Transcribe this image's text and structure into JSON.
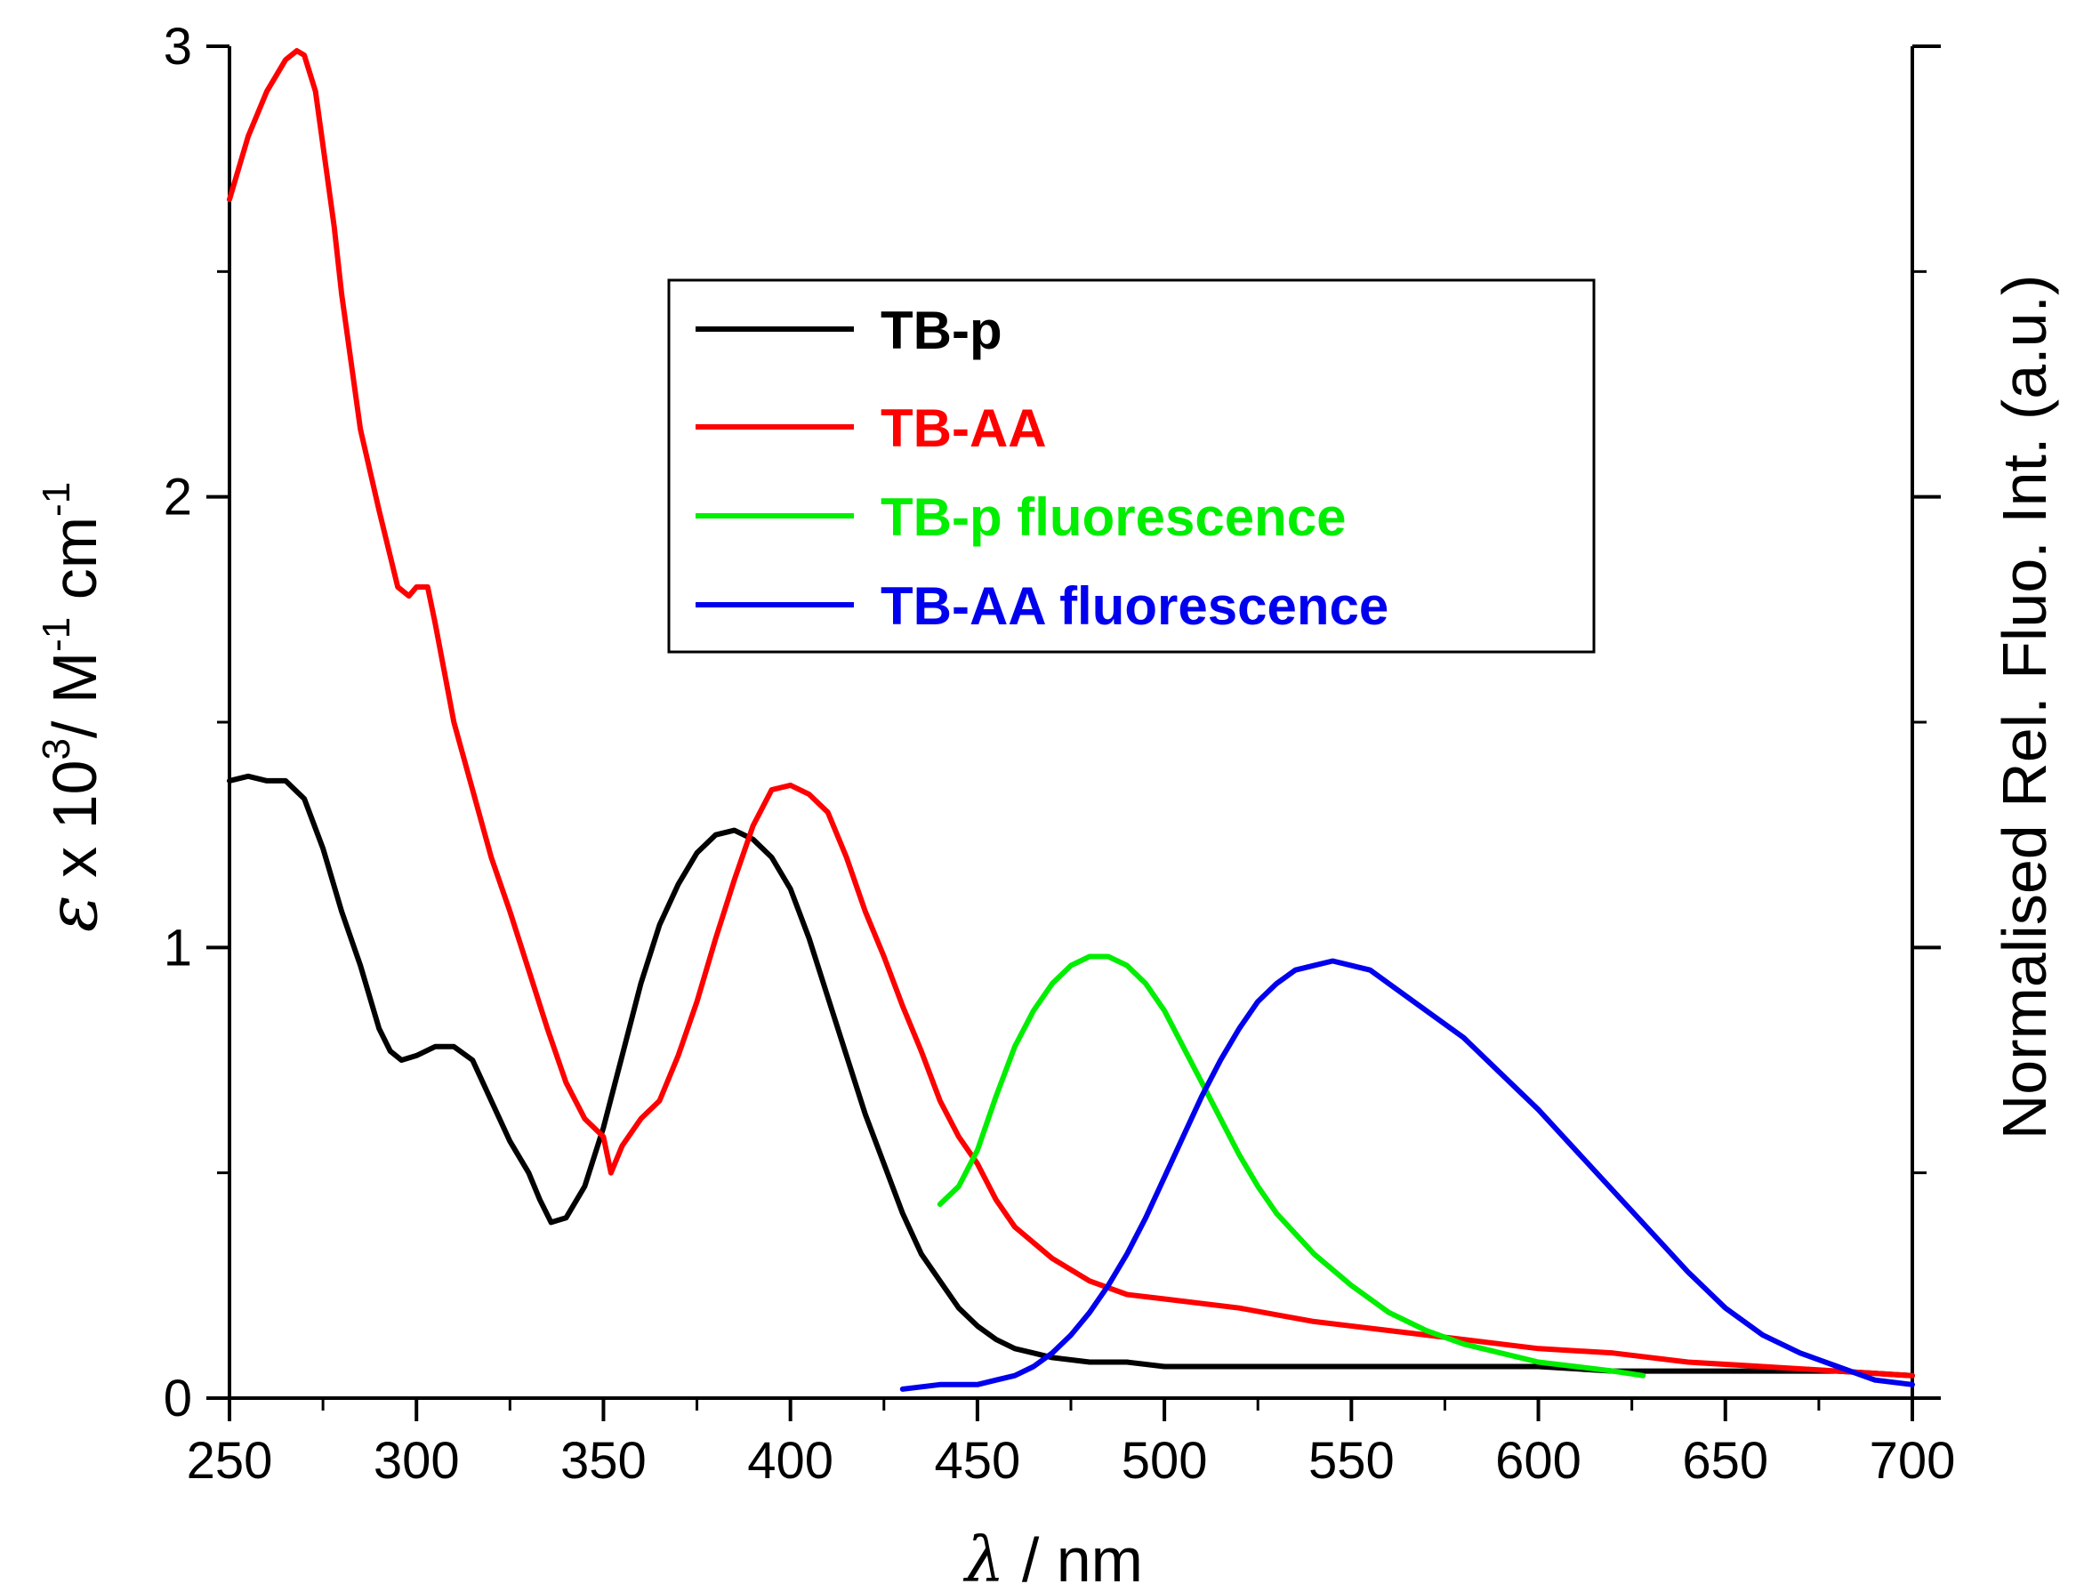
{
  "chart_data": {
    "type": "line",
    "xlabel": {
      "symbol": "λ",
      "unit": " / nm"
    },
    "ylabel_left": {
      "symbol": "ε",
      "part1": " x 10",
      "sup1": "3",
      "part2": "/ M",
      "sup2": "-1",
      "part3": " cm",
      "sup3": "-1"
    },
    "ylabel_right": "Normalised Rel. Fluo. Int. (a.u.)",
    "xlim": [
      250,
      700
    ],
    "ylim_left": [
      0,
      3
    ],
    "ylim_right": [
      0,
      3
    ],
    "x_ticks": [
      250,
      300,
      350,
      400,
      450,
      500,
      550,
      600,
      650,
      700
    ],
    "y_ticks_left": [
      0,
      1,
      2,
      3
    ],
    "legend_position": "top-center",
    "series": [
      {
        "name": "TB-p",
        "color": "#000000",
        "axis": "left",
        "x": [
          250,
          255,
          260,
          265,
          270,
          275,
          280,
          285,
          290,
          293,
          296,
          300,
          305,
          310,
          315,
          320,
          325,
          330,
          333,
          336,
          340,
          345,
          350,
          355,
          360,
          365,
          370,
          375,
          380,
          385,
          390,
          395,
          400,
          405,
          410,
          415,
          420,
          425,
          430,
          435,
          440,
          445,
          450,
          455,
          460,
          465,
          470,
          480,
          490,
          500,
          520,
          540,
          560,
          580,
          600,
          620,
          640,
          660,
          680,
          700
        ],
        "y": [
          1.37,
          1.38,
          1.37,
          1.37,
          1.33,
          1.22,
          1.08,
          0.96,
          0.82,
          0.77,
          0.75,
          0.76,
          0.78,
          0.78,
          0.75,
          0.66,
          0.57,
          0.5,
          0.44,
          0.39,
          0.4,
          0.47,
          0.6,
          0.76,
          0.92,
          1.05,
          1.14,
          1.21,
          1.25,
          1.26,
          1.24,
          1.2,
          1.13,
          1.02,
          0.89,
          0.76,
          0.63,
          0.52,
          0.41,
          0.32,
          0.26,
          0.2,
          0.16,
          0.13,
          0.11,
          0.1,
          0.09,
          0.08,
          0.08,
          0.07,
          0.07,
          0.07,
          0.07,
          0.07,
          0.07,
          0.06,
          0.06,
          0.06,
          0.06,
          0.05
        ]
      },
      {
        "name": "TB-AA",
        "color": "#ff0000",
        "axis": "left",
        "x": [
          250,
          255,
          260,
          265,
          268,
          270,
          273,
          275,
          278,
          280,
          285,
          290,
          295,
          298,
          300,
          303,
          305,
          310,
          315,
          320,
          325,
          330,
          335,
          340,
          345,
          350,
          352,
          355,
          360,
          365,
          370,
          375,
          380,
          385,
          390,
          395,
          400,
          405,
          410,
          415,
          420,
          425,
          430,
          435,
          440,
          445,
          450,
          455,
          460,
          470,
          480,
          490,
          500,
          520,
          540,
          560,
          580,
          600,
          620,
          640,
          660,
          680,
          700
        ],
        "y": [
          2.66,
          2.8,
          2.9,
          2.97,
          2.99,
          2.98,
          2.9,
          2.78,
          2.6,
          2.45,
          2.15,
          1.97,
          1.8,
          1.78,
          1.8,
          1.8,
          1.72,
          1.5,
          1.35,
          1.2,
          1.08,
          0.95,
          0.82,
          0.7,
          0.62,
          0.58,
          0.5,
          0.56,
          0.62,
          0.66,
          0.76,
          0.88,
          1.02,
          1.15,
          1.27,
          1.35,
          1.36,
          1.34,
          1.3,
          1.2,
          1.08,
          0.98,
          0.87,
          0.77,
          0.66,
          0.58,
          0.52,
          0.44,
          0.38,
          0.31,
          0.26,
          0.23,
          0.22,
          0.2,
          0.17,
          0.15,
          0.13,
          0.11,
          0.1,
          0.08,
          0.07,
          0.06,
          0.05
        ]
      },
      {
        "name": "TB-p fluorescence",
        "color": "#00ee00",
        "axis": "right",
        "x": [
          440,
          445,
          450,
          455,
          460,
          465,
          470,
          475,
          480,
          485,
          490,
          495,
          500,
          505,
          510,
          515,
          520,
          525,
          530,
          540,
          550,
          560,
          570,
          580,
          590,
          600,
          610,
          620,
          628
        ],
        "y": [
          0.43,
          0.47,
          0.55,
          0.67,
          0.78,
          0.86,
          0.92,
          0.96,
          0.98,
          0.98,
          0.96,
          0.92,
          0.86,
          0.78,
          0.7,
          0.62,
          0.54,
          0.47,
          0.41,
          0.32,
          0.25,
          0.19,
          0.15,
          0.12,
          0.1,
          0.08,
          0.07,
          0.06,
          0.05
        ]
      },
      {
        "name": "TB-AA fluorescence",
        "color": "#0000ee",
        "axis": "right",
        "x": [
          430,
          440,
          450,
          455,
          460,
          465,
          470,
          475,
          480,
          485,
          490,
          495,
          500,
          505,
          510,
          515,
          520,
          525,
          530,
          535,
          540,
          545,
          550,
          555,
          560,
          570,
          580,
          590,
          600,
          610,
          620,
          630,
          640,
          650,
          660,
          670,
          680,
          690,
          700
        ],
        "y": [
          0.02,
          0.03,
          0.03,
          0.04,
          0.05,
          0.07,
          0.1,
          0.14,
          0.19,
          0.25,
          0.32,
          0.4,
          0.49,
          0.58,
          0.67,
          0.75,
          0.82,
          0.88,
          0.92,
          0.95,
          0.96,
          0.97,
          0.96,
          0.95,
          0.92,
          0.86,
          0.8,
          0.72,
          0.64,
          0.55,
          0.46,
          0.37,
          0.28,
          0.2,
          0.14,
          0.1,
          0.07,
          0.04,
          0.03
        ]
      }
    ]
  }
}
